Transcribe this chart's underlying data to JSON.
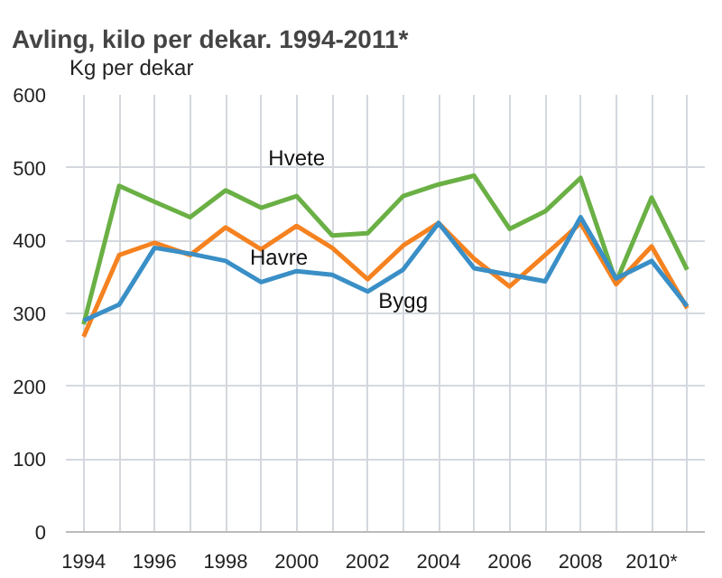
{
  "chart_data": {
    "type": "line",
    "title": "Avling, kilo per dekar. 1994-2011*",
    "ylabel": "Kg per dekar",
    "categories": [
      "1994",
      null,
      "1996",
      null,
      "1998",
      null,
      "2000",
      null,
      "2002",
      null,
      "2004",
      null,
      "2006",
      null,
      "2008",
      null,
      "2010*",
      null
    ],
    "series": [
      {
        "name": "Hvete",
        "color": "#6ab045",
        "values": [
          285,
          475,
          453,
          432,
          469,
          445,
          461,
          407,
          410,
          461,
          477,
          489,
          416,
          440,
          486,
          343,
          459,
          360
        ]
      },
      {
        "name": "Havre",
        "color": "#f58220",
        "values": [
          268,
          380,
          397,
          380,
          418,
          388,
          420,
          390,
          347,
          393,
          424,
          375,
          337,
          380,
          424,
          340,
          392,
          307
        ]
      },
      {
        "name": "Bygg",
        "color": "#3a8fc6",
        "values": [
          290,
          312,
          390,
          382,
          372,
          343,
          358,
          353,
          330,
          360,
          424,
          362,
          353,
          344,
          432,
          348,
          372,
          310
        ]
      }
    ],
    "ylim": [
      0,
      600
    ],
    "yticks": [
      0,
      100,
      200,
      300,
      400,
      500,
      600
    ],
    "grid": true,
    "legend": false,
    "marker": "none",
    "line_style": "solid"
  }
}
